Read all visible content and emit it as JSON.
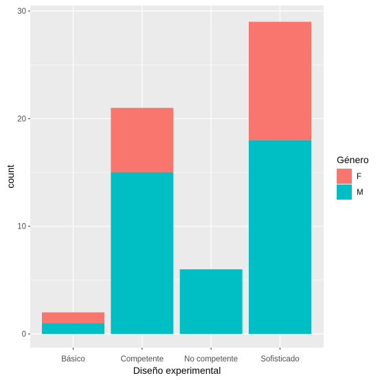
{
  "chart_data": {
    "type": "bar",
    "stacked": true,
    "categories": [
      "Básico",
      "Competente",
      "No competente",
      "Sofisticado"
    ],
    "series": [
      {
        "name": "F",
        "values": [
          1,
          6,
          0,
          11
        ],
        "color": "#F8766D"
      },
      {
        "name": "M",
        "values": [
          1,
          15,
          6,
          18
        ],
        "color": "#00BFC4"
      }
    ],
    "xlabel": "Diseño experimental",
    "ylabel": "count",
    "ylim": [
      0,
      30
    ],
    "yticks": [
      0,
      10,
      20,
      30
    ],
    "legend": {
      "title": "Género",
      "placement": "right"
    },
    "grid": true,
    "panel_background": "#EBEBEB",
    "grid_color": "#FFFFFF"
  }
}
